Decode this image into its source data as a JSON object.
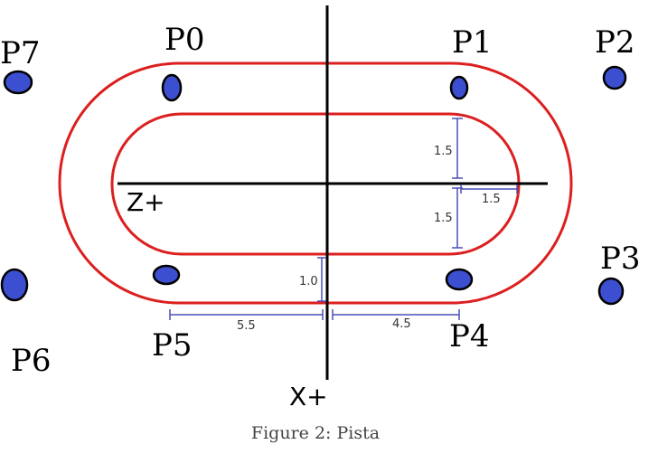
{
  "diagram": {
    "caption": "Figure 2: Pista",
    "axes": {
      "z_label": "Z+",
      "x_label": "X+"
    },
    "points": [
      {
        "label": "P0"
      },
      {
        "label": "P1"
      },
      {
        "label": "P2"
      },
      {
        "label": "P3"
      },
      {
        "label": "P4"
      },
      {
        "label": "P5"
      },
      {
        "label": "P6"
      },
      {
        "label": "P7"
      }
    ],
    "dimensions": {
      "inner_half_width_top": "1.5",
      "inner_half_width_bottom": "1.5",
      "inner_end_radius": "1.5",
      "lane_width": "1.0",
      "straight_left": "5.5",
      "straight_right": "4.5"
    },
    "colors": {
      "track": "#dc1f1f",
      "point_fill": "#3b4fd0",
      "dimension": "#4a4fb8",
      "axis": "#000000"
    }
  }
}
